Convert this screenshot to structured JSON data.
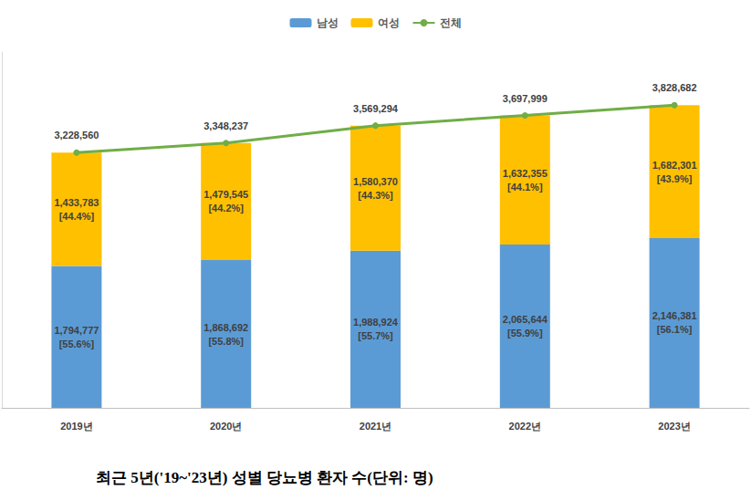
{
  "chart_data": {
    "type": "bar",
    "title": "최근 5년('19~'23년) 성별 당뇨병 환자 수(단위: 명)",
    "categories": [
      "2019년",
      "2020년",
      "2021년",
      "2022년",
      "2023년"
    ],
    "stacked": true,
    "data_labels": true,
    "tick_labels": "x",
    "grid": false,
    "legend": "top",
    "ylim": [
      0,
      4500000
    ],
    "series": [
      {
        "name": "남성",
        "type": "bar",
        "color": "#5b9bd5",
        "values": [
          1794777,
          1868692,
          1988924,
          2065644,
          2146381
        ],
        "value_labels": [
          "1,794,777",
          "1,868,692",
          "1,988,924",
          "2,065,644",
          "2,146,381"
        ],
        "shares": [
          55.6,
          55.8,
          55.7,
          55.9,
          56.1
        ],
        "share_labels": [
          "[55.6%]",
          "[55.8%]",
          "[55.7%]",
          "[55.9%]",
          "[56.1%]"
        ]
      },
      {
        "name": "여성",
        "type": "bar",
        "color": "#ffc000",
        "values": [
          1433783,
          1479545,
          1580370,
          1632355,
          1682301
        ],
        "value_labels": [
          "1,433,783",
          "1,479,545",
          "1,580,370",
          "1,632,355",
          "1,682,301"
        ],
        "shares": [
          44.4,
          44.2,
          44.3,
          44.1,
          43.9
        ],
        "share_labels": [
          "[44.4%]",
          "[44.2%]",
          "[44.3%]",
          "[44.1%]",
          "[43.9%]"
        ]
      },
      {
        "name": "전체",
        "type": "line",
        "color": "#70ad47",
        "marker": "circle",
        "values": [
          3228560,
          3348237,
          3569294,
          3697999,
          3828682
        ],
        "value_labels": [
          "3,228,560",
          "3,348,237",
          "3,569,294",
          "3,697,999",
          "3,828,682"
        ]
      }
    ]
  }
}
